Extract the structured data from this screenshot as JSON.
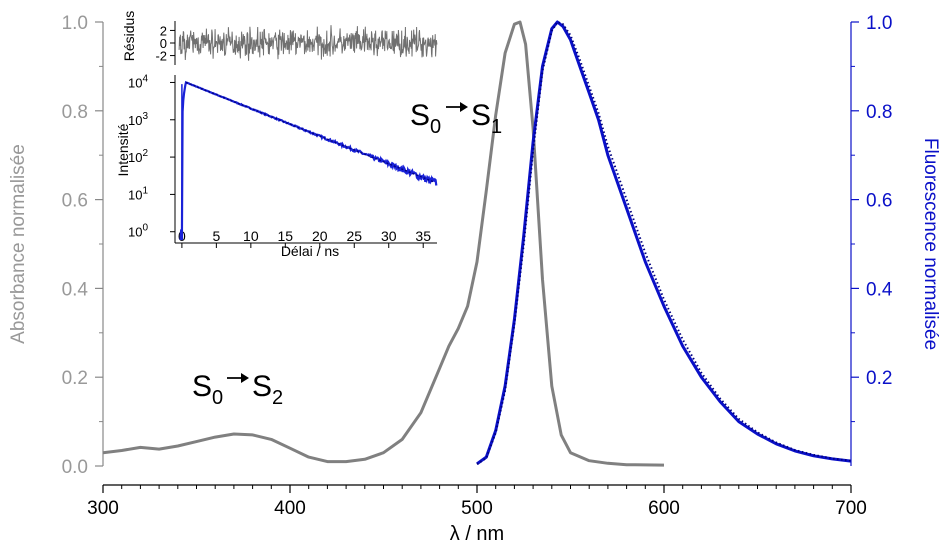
{
  "chart_data": [
    {
      "type": "line",
      "xlabel": "λ / nm",
      "ylabel_left": "Absorbance normalisée",
      "ylabel_right": "Fluorescence normalisée",
      "xlim": [
        300,
        700
      ],
      "ylim_left": [
        0,
        1.0
      ],
      "ylim_right": [
        0,
        1.0
      ],
      "x_ticks": [
        300,
        400,
        500,
        600,
        700
      ],
      "y_ticks_left": [
        "0.0",
        "0.2",
        "0.4",
        "0.6",
        "0.8",
        "1.0"
      ],
      "y_ticks_right": [
        "0.2",
        "0.4",
        "0.6",
        "0.8",
        "1.0"
      ],
      "colors": {
        "absorbance": "#808080",
        "fluorescence": "#0a10c8",
        "fluorescence_fit": "#000080",
        "residuals": "#707070"
      },
      "annotations": [
        {
          "base": "S",
          "sub1": "0",
          "base2": "S",
          "sub2": "1",
          "x": 510,
          "y": 0.8
        },
        {
          "base": "S",
          "sub1": "0",
          "base2": "S",
          "sub2": "2",
          "x": 355,
          "y": 0.17
        }
      ],
      "series": [
        {
          "role": "absorbance",
          "axis": "left",
          "style": "solid",
          "x": [
            300,
            310,
            320,
            330,
            340,
            350,
            360,
            370,
            380,
            390,
            400,
            410,
            420,
            430,
            440,
            450,
            460,
            470,
            480,
            485,
            490,
            495,
            500,
            505,
            510,
            515,
            520,
            523,
            526,
            530,
            535,
            540,
            545,
            550,
            560,
            570,
            580,
            600
          ],
          "y": [
            0.03,
            0.035,
            0.042,
            0.038,
            0.045,
            0.055,
            0.065,
            0.072,
            0.07,
            0.06,
            0.04,
            0.02,
            0.01,
            0.01,
            0.015,
            0.03,
            0.06,
            0.12,
            0.22,
            0.27,
            0.31,
            0.36,
            0.46,
            0.62,
            0.79,
            0.93,
            0.995,
            1.0,
            0.95,
            0.76,
            0.42,
            0.18,
            0.07,
            0.03,
            0.012,
            0.006,
            0.003,
            0.002
          ]
        },
        {
          "role": "fluorescence",
          "axis": "right",
          "style": "solid",
          "x": [
            500,
            505,
            510,
            515,
            520,
            525,
            530,
            535,
            540,
            543,
            546,
            550,
            555,
            560,
            565,
            570,
            580,
            590,
            600,
            610,
            620,
            630,
            640,
            650,
            660,
            670,
            680,
            690,
            700
          ],
          "y": [
            0.005,
            0.02,
            0.08,
            0.18,
            0.33,
            0.52,
            0.73,
            0.9,
            0.985,
            1.0,
            0.99,
            0.96,
            0.9,
            0.84,
            0.78,
            0.7,
            0.58,
            0.46,
            0.36,
            0.27,
            0.2,
            0.145,
            0.1,
            0.072,
            0.05,
            0.034,
            0.023,
            0.016,
            0.011
          ]
        },
        {
          "role": "fluorescence_fit",
          "axis": "right",
          "style": "dotted",
          "x": [
            500,
            505,
            510,
            515,
            520,
            525,
            530,
            535,
            540,
            543,
            546,
            550,
            555,
            560,
            565,
            570,
            580,
            590,
            600,
            610,
            620,
            630,
            640,
            650,
            660,
            670,
            680,
            690,
            700
          ],
          "y": [
            0.004,
            0.018,
            0.075,
            0.17,
            0.32,
            0.5,
            0.71,
            0.89,
            0.98,
            1.0,
            0.995,
            0.97,
            0.915,
            0.855,
            0.795,
            0.72,
            0.6,
            0.48,
            0.375,
            0.285,
            0.21,
            0.152,
            0.106,
            0.076,
            0.053,
            0.036,
            0.025,
            0.017,
            0.012
          ]
        }
      ]
    },
    {
      "type": "scatter",
      "xlabel": "Délai / ns",
      "ylabel": "Intensité",
      "residuals_label": "Résidus",
      "yscale": "log",
      "xlim": [
        -1,
        37
      ],
      "ylim": [
        0.6,
        14000
      ],
      "x_ticks": [
        0,
        5,
        10,
        15,
        20,
        25,
        30,
        35
      ],
      "y_ticks": [
        {
          "base": "10",
          "exp": "0",
          "value": 1
        },
        {
          "base": "10",
          "exp": "1",
          "value": 10
        },
        {
          "base": "10",
          "exp": "2",
          "value": 100
        },
        {
          "base": "10",
          "exp": "3",
          "value": 1000
        },
        {
          "base": "10",
          "exp": "4",
          "value": 10000
        }
      ],
      "residual_ticks": [
        "2",
        "0",
        "-2"
      ],
      "residual_ylim": [
        -3.5,
        3.5
      ],
      "decay": {
        "rise_start": 0,
        "peak_time": 0.6,
        "peak": 10000,
        "end_time": 37,
        "end_value": 20
      }
    }
  ]
}
